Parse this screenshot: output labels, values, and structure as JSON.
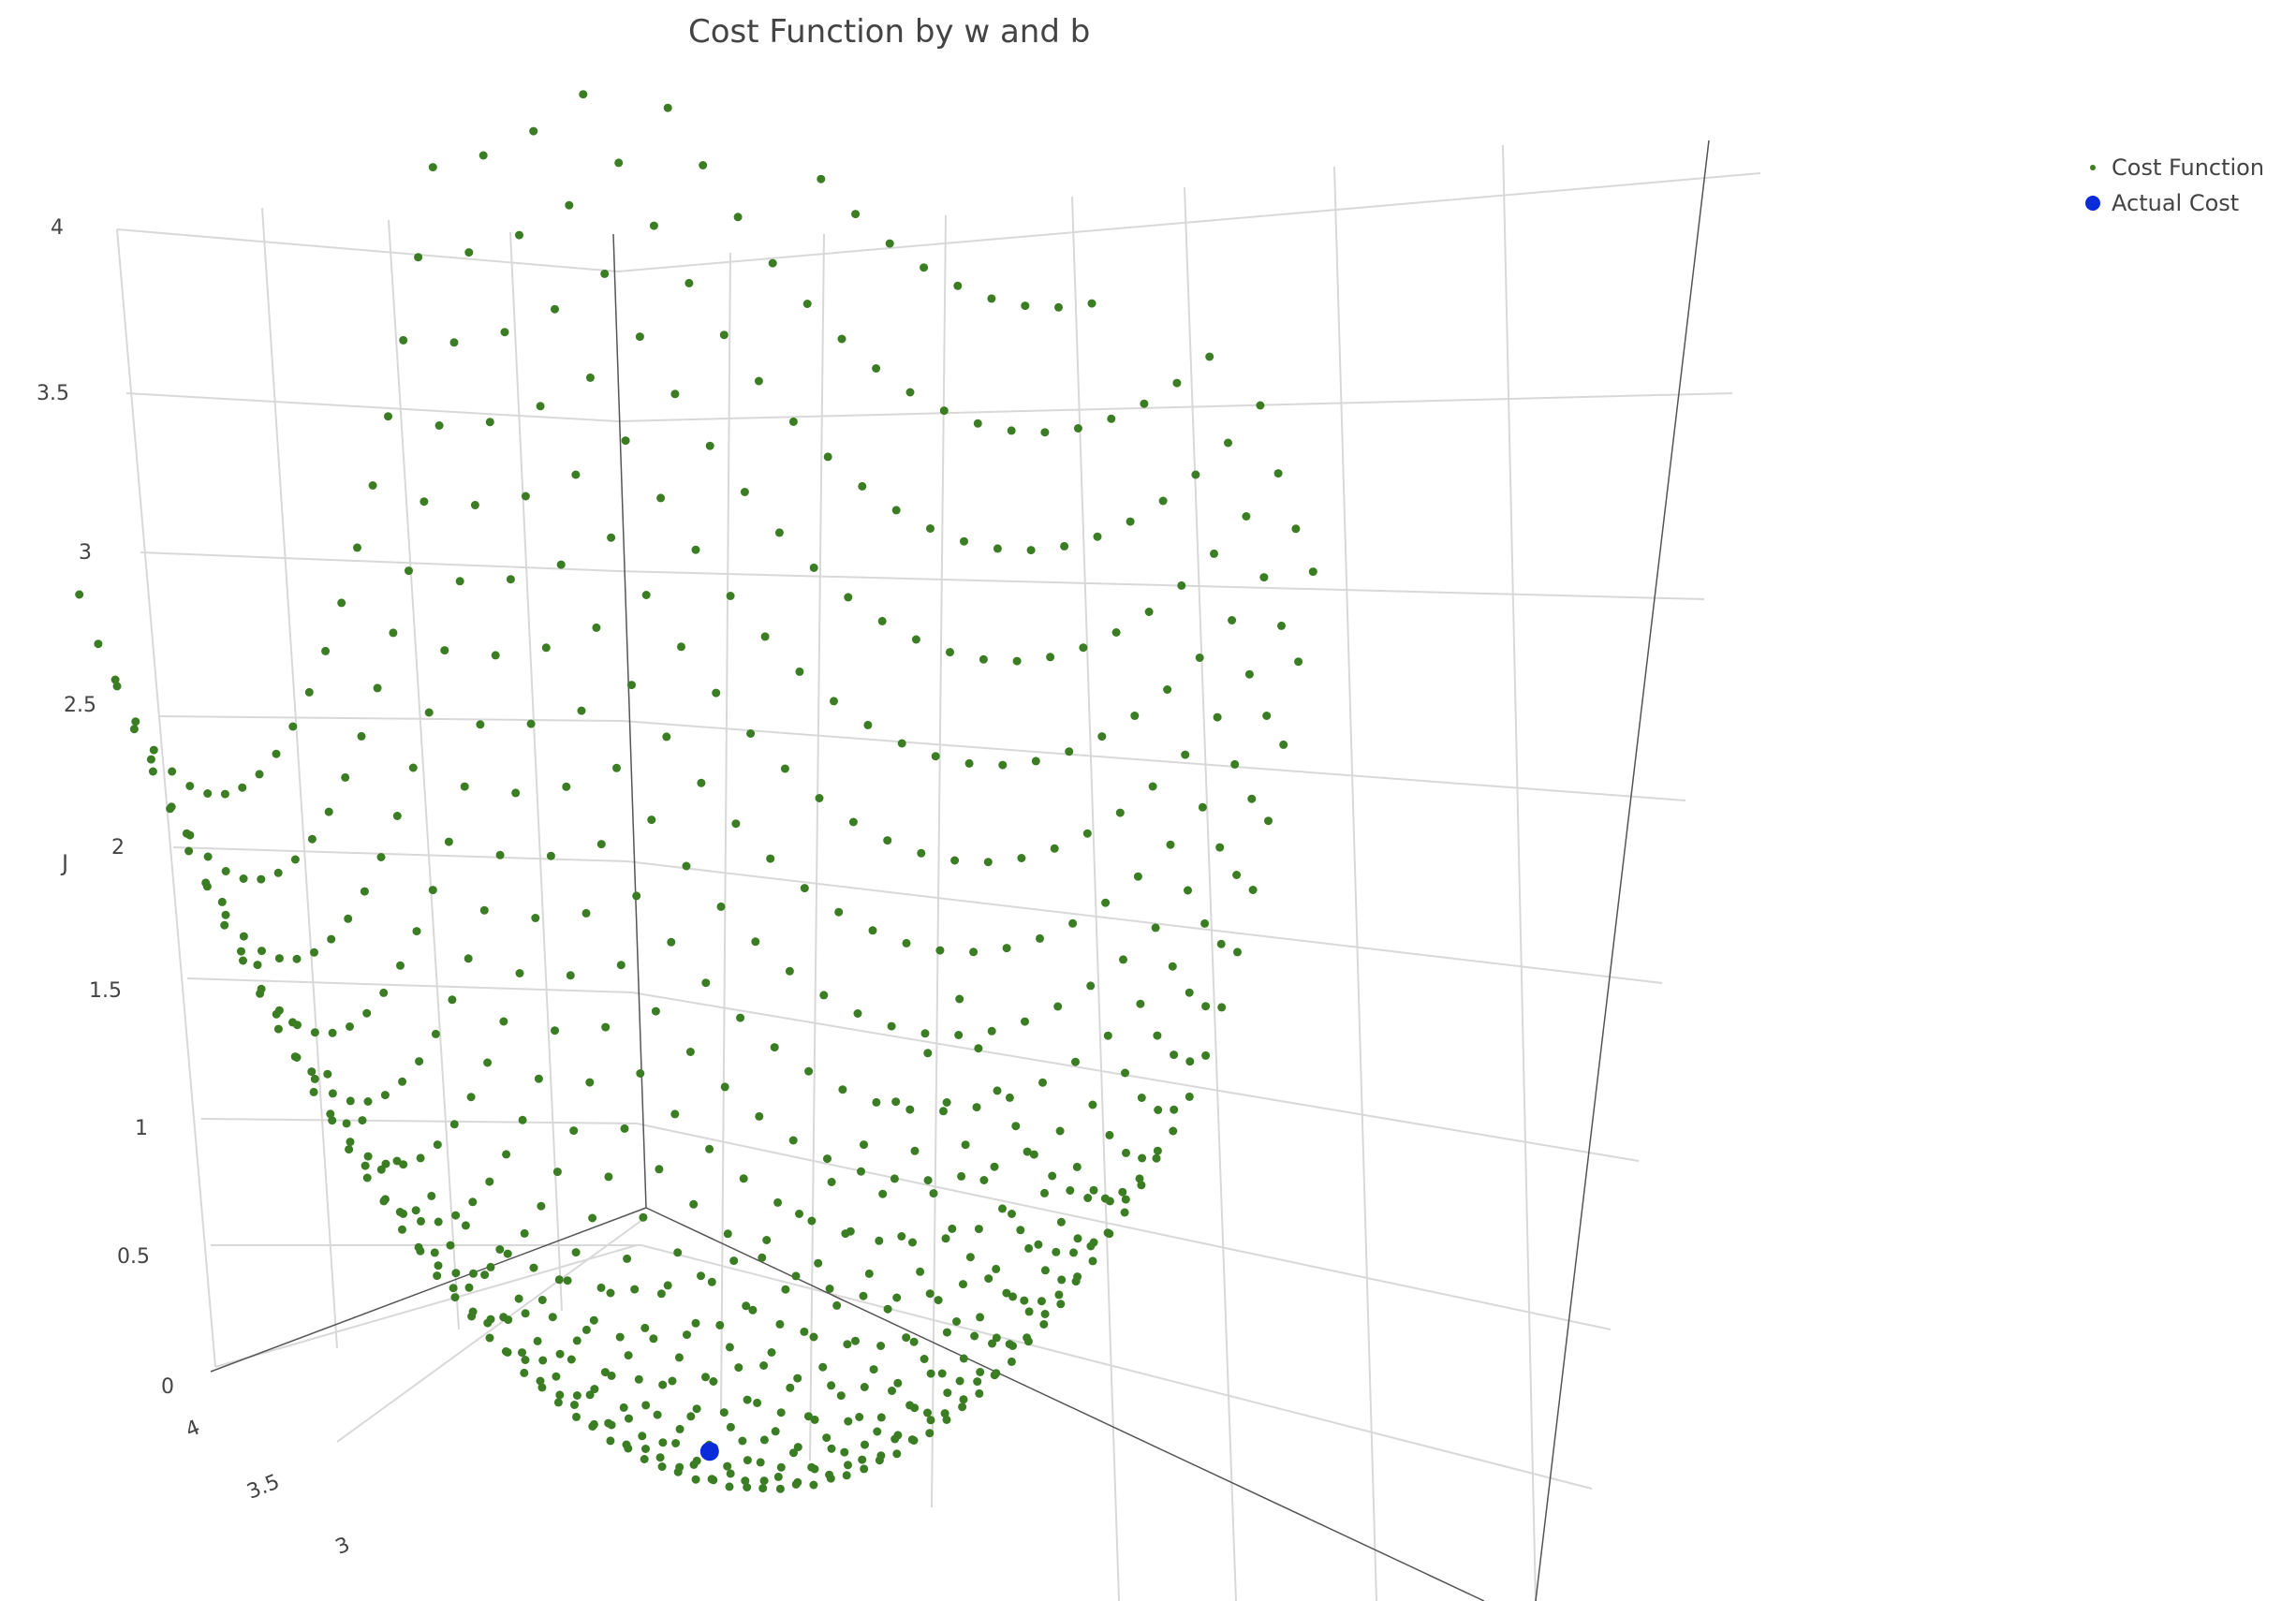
{
  "chart_data": {
    "type": "scatter",
    "title": "Cost Function by w and b",
    "zlabel": "J",
    "z_ticks": [
      "0",
      "0.5",
      "1",
      "1.5",
      "2",
      "2.5",
      "3",
      "3.5",
      "4"
    ],
    "y_ticks_visible": [
      "4",
      "3.5",
      "3"
    ],
    "zlim": [
      0,
      4
    ],
    "grid": true,
    "legend_position": "top-right",
    "series": [
      {
        "name": "Cost Function",
        "color": "#3a7d22",
        "marker": "dot-small",
        "description_shape": "convex quadratic bowl over (w, b) grid"
      },
      {
        "name": "Actual Cost",
        "color": "#0a2bd9",
        "marker": "dot-large",
        "values": [
          {
            "J": 0.0
          }
        ]
      }
    ]
  }
}
